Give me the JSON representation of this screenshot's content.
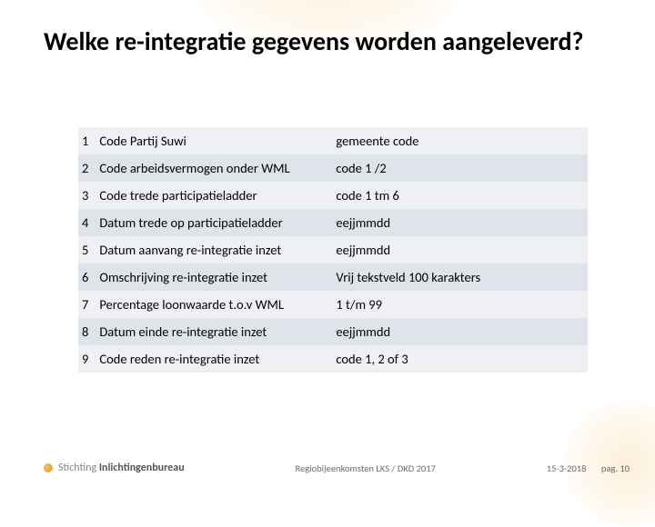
{
  "title": "Welke re-integratie gegevens worden aangeleverd?",
  "title_color": "#000000",
  "table": {
    "row_colors": {
      "odd": "#eef0f4",
      "even": "#dfe3ea"
    },
    "font_size": 14.5,
    "rows": [
      {
        "num": "1",
        "label": "Code Partij Suwi",
        "value": "gemeente code"
      },
      {
        "num": "2",
        "label": "Code arbeidsvermogen onder WML",
        "value": "code 1 /2"
      },
      {
        "num": "3",
        "label": "Code trede participatieladder",
        "value": "code 1 tm 6"
      },
      {
        "num": "4",
        "label": "Datum trede op participatieladder",
        "value": "eejjmmdd"
      },
      {
        "num": "5",
        "label": "Datum aanvang re-integratie inzet",
        "value": "eejjmmdd"
      },
      {
        "num": "6",
        "label": "Omschrijving re-integratie inzet",
        "value": "Vrij tekstveld 100 karakters"
      },
      {
        "num": "7",
        "label": "Percentage loonwaarde t.o.v WML",
        "value": "1 t/m 99"
      },
      {
        "num": "8",
        "label": "Datum einde re-integratie inzet",
        "value": "eejjmmdd"
      },
      {
        "num": "9",
        "label": "Code reden re-integratie inzet",
        "value": "code 1, 2 of 3"
      }
    ]
  },
  "footer": {
    "org_prefix": "Stichting ",
    "org_name": "Inlichtingenbureau",
    "center": "Regiobijeenkomsten LKS / DKD 2017",
    "date": "15-3-2018",
    "page_label": "pag.",
    "page_num": "10"
  },
  "colors": {
    "accent": "#e9a23a",
    "background": "#ffffff",
    "footer_text": "#6b6b6b"
  }
}
